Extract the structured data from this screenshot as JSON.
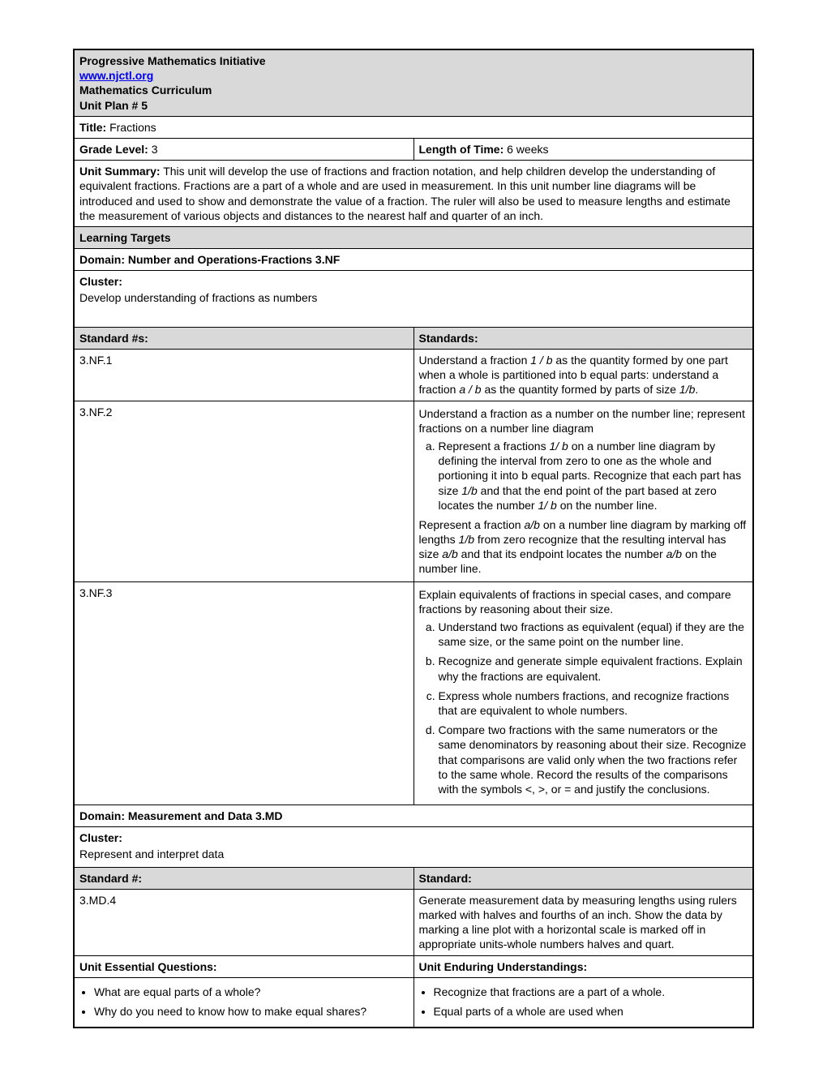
{
  "header": {
    "title": "Progressive Mathematics Initiative",
    "link": "www.njctl.org",
    "subtitle1": "Mathematics Curriculum",
    "subtitle2": "Unit Plan # 5"
  },
  "title_row": {
    "label": "Title:",
    "value": "Fractions"
  },
  "grade_row": {
    "grade_label": "Grade Level:",
    "grade_value": "3",
    "time_label": "Length of Time:",
    "time_value": "6 weeks"
  },
  "summary": {
    "label": "Unit Summary:",
    "text": "This unit will develop the use of fractions and fraction notation, and help children develop the understanding of equivalent fractions.  Fractions are a part of a whole and are used in measurement.  In this unit number line diagrams will be introduced and used to show and demonstrate the value of a fraction.  The ruler will also be used to measure lengths and estimate the measurement of various objects and distances to the nearest half and quarter of an inch."
  },
  "learning_targets_header": "Learning Targets",
  "domain1": "Domain: Number and Operations-Fractions 3.NF",
  "cluster1": {
    "label": "Cluster:",
    "text": "Develop understanding of fractions as numbers"
  },
  "std_header": {
    "col1": "Standard #s:",
    "col2": "Standards:"
  },
  "standards": {
    "nf1": {
      "id": "3.NF.1",
      "text_a": "Understand a fraction ",
      "text_b": "1 / b",
      "text_c": " as the quantity formed by one part when a whole is partitioned into b equal parts: understand a fraction ",
      "text_d": "a / b",
      "text_e": " as the quantity formed by parts of size ",
      "text_f": "1/b",
      "text_g": "."
    },
    "nf2": {
      "id": "3.NF.2",
      "intro": "Understand a fraction as a number on the number line; represent fractions on a number line diagram",
      "a": {
        "p1": "Represent a fractions ",
        "p2": "1/ b",
        "p3": " on a number line diagram by defining the interval from zero to one as the whole and portioning it into b equal parts.  Recognize that each part has size ",
        "p4": "1/b",
        "p5": " and that the end point of the part based at zero locates the number ",
        "p6": "1/ b",
        "p7": " on the number line."
      },
      "outro": {
        "p1": "Represent a fraction ",
        "p2": "a/b",
        "p3": " on a number line diagram by marking off lengths ",
        "p4": "1/b",
        "p5": " from zero recognize that the resulting interval has size ",
        "p6": "a/b",
        "p7": " and that its endpoint locates the number ",
        "p8": "a/b",
        "p9": " on the number line."
      }
    },
    "nf3": {
      "id": "3.NF.3",
      "intro": "Explain equivalents of fractions in special cases, and compare fractions by reasoning about their size.",
      "a": "Understand two fractions as equivalent (equal) if they are the same size, or the same point on the number line.",
      "b": "Recognize and generate simple equivalent fractions.  Explain why the fractions are equivalent.",
      "c": "Express whole numbers fractions, and recognize fractions that are equivalent to whole numbers.",
      "d": "Compare two fractions with the same numerators or the same denominators by reasoning about their size.  Recognize that comparisons are valid only when the two fractions refer to the same whole.  Record the results of the comparisons with the symbols <, >, or = and justify the conclusions."
    }
  },
  "domain2": "Domain: Measurement and Data 3.MD",
  "cluster2": {
    "label": "Cluster:",
    "text": "Represent and interpret data"
  },
  "std_header2": {
    "col1": "Standard #:",
    "col2": "Standard:"
  },
  "md4": {
    "id": "3.MD.4",
    "text": "Generate measurement data by measuring lengths using rulers marked with halves and fourths of an inch. Show the data by marking a line plot with a horizontal scale is marked off in appropriate units-whole numbers halves and quart."
  },
  "eq_header": {
    "left": "Unit Essential Questions:",
    "right": "Unit Enduring Understandings:"
  },
  "essential_questions": {
    "q1": "What are equal parts of a whole?",
    "q2": "Why do you need to know how to make equal shares?"
  },
  "enduring": {
    "u1": "Recognize that fractions are a part of a whole.",
    "u2": "Equal parts of a whole are used when"
  }
}
